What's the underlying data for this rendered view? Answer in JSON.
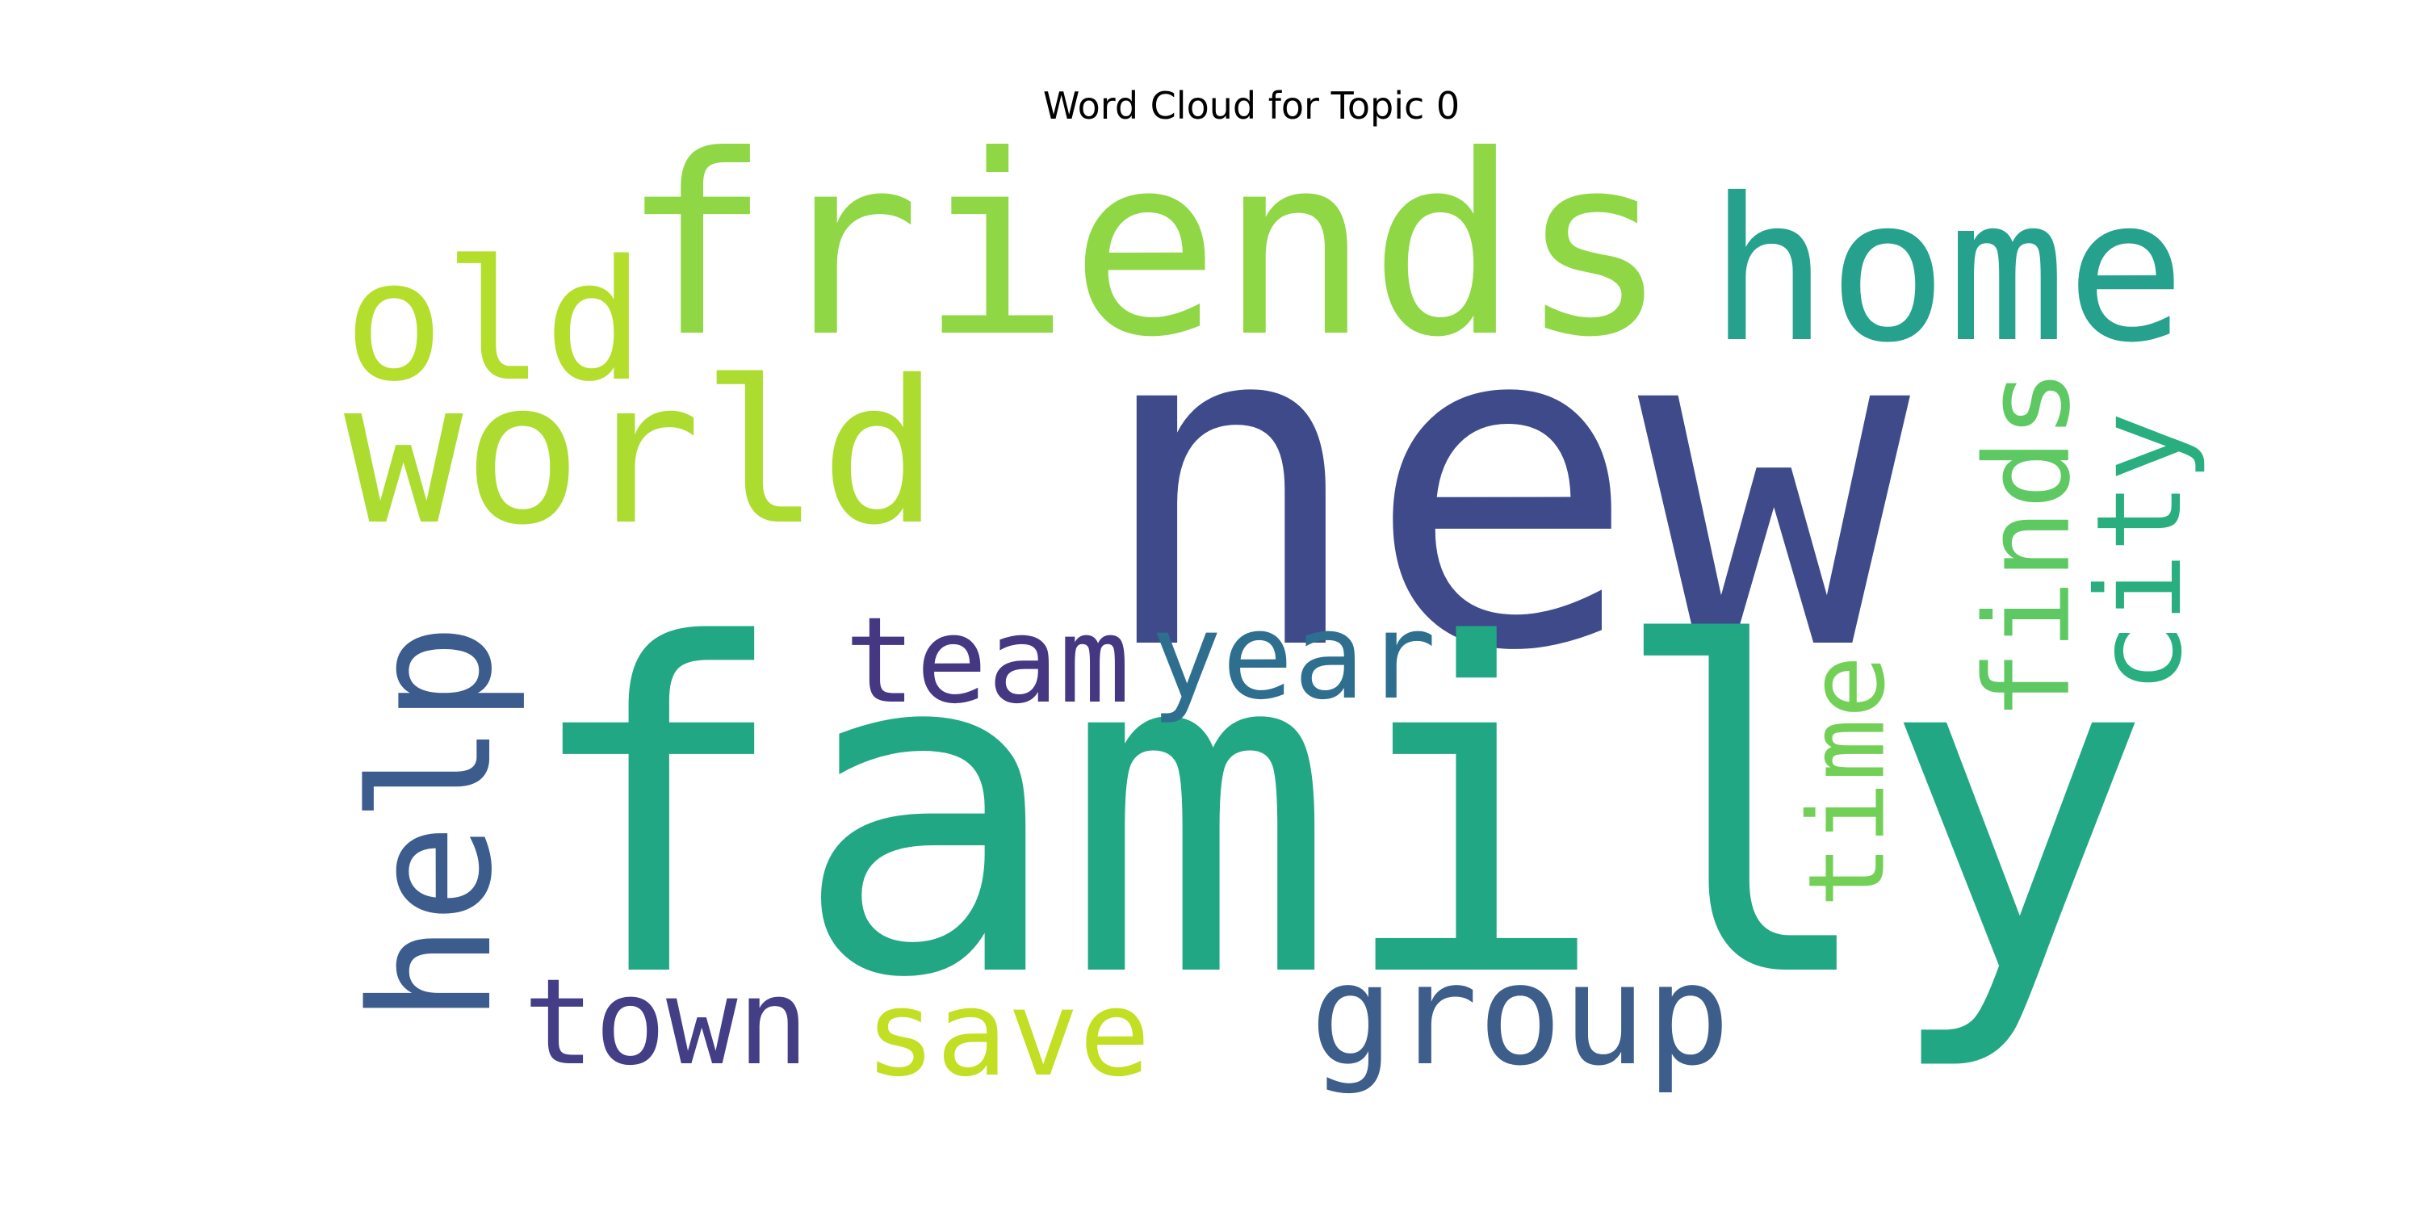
{
  "chart_data": {
    "type": "wordcloud",
    "title": "Word Cloud for Topic 0",
    "colormap": "viridis",
    "background": "#ffffff",
    "words": [
      {
        "text": "new",
        "weight": 1.0,
        "color": "#3f4a8a",
        "orientation": "horizontal"
      },
      {
        "text": "family",
        "weight": 0.98,
        "color": "#22a784",
        "orientation": "horizontal"
      },
      {
        "text": "friends",
        "weight": 0.58,
        "color": "#8fd744",
        "orientation": "horizontal"
      },
      {
        "text": "home",
        "weight": 0.47,
        "color": "#25a18e",
        "orientation": "horizontal"
      },
      {
        "text": "world",
        "weight": 0.47,
        "color": "#addc30",
        "orientation": "horizontal"
      },
      {
        "text": "old",
        "weight": 0.4,
        "color": "#b4de2c",
        "orientation": "horizontal"
      },
      {
        "text": "help",
        "weight": 0.4,
        "color": "#3b5c8c",
        "orientation": "vertical"
      },
      {
        "text": "group",
        "weight": 0.33,
        "color": "#3d5d8a",
        "orientation": "horizontal"
      },
      {
        "text": "team",
        "weight": 0.28,
        "color": "#453781",
        "orientation": "horizontal"
      },
      {
        "text": "year",
        "weight": 0.28,
        "color": "#2e6e8e",
        "orientation": "horizontal"
      },
      {
        "text": "town",
        "weight": 0.28,
        "color": "#433e85",
        "orientation": "horizontal"
      },
      {
        "text": "save",
        "weight": 0.28,
        "color": "#c2df23",
        "orientation": "horizontal"
      },
      {
        "text": "finds",
        "weight": 0.27,
        "color": "#5ec962",
        "orientation": "vertical"
      },
      {
        "text": "city",
        "weight": 0.27,
        "color": "#29af7f",
        "orientation": "vertical"
      },
      {
        "text": "time",
        "weight": 0.24,
        "color": "#73d056",
        "orientation": "vertical"
      }
    ]
  }
}
